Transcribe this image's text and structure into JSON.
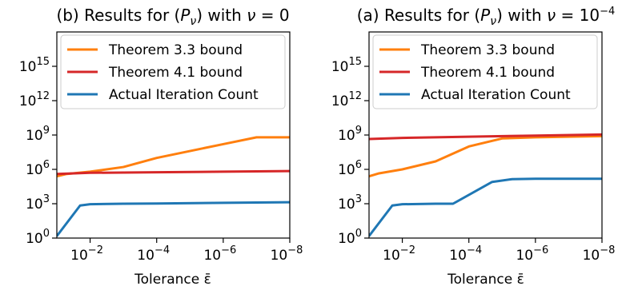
{
  "chart_data": [
    {
      "type": "line",
      "title": "(b) Results for (P_ν) with ν = 0",
      "title_parts": {
        "prefix": "(b) Results for (",
        "P": "P",
        "nu": "ν",
        "mid": ") with ",
        "nu2": "ν",
        "suffix": " = 0"
      },
      "xlabel": "Tolerance ε̄",
      "xscale": "log-reversed",
      "yscale": "log",
      "xlim": [
        0.1,
        1e-08
      ],
      "ylim": [
        1,
        1e+18
      ],
      "x_ticks": [
        {
          "value": 0.01,
          "base": "10",
          "exp": "−2"
        },
        {
          "value": 0.0001,
          "base": "10",
          "exp": "−4"
        },
        {
          "value": 1e-06,
          "base": "10",
          "exp": "−6"
        },
        {
          "value": 1e-08,
          "base": "10",
          "exp": "−8"
        }
      ],
      "y_ticks": [
        {
          "value": 1,
          "base": "10",
          "exp": "0"
        },
        {
          "value": 1000,
          "base": "10",
          "exp": "3"
        },
        {
          "value": 1000000.0,
          "base": "10",
          "exp": "6"
        },
        {
          "value": 1000000000.0,
          "base": "10",
          "exp": "9"
        },
        {
          "value": 1000000000000.0,
          "base": "10",
          "exp": "12"
        },
        {
          "value": 1000000000000000.0,
          "base": "10",
          "exp": "15"
        }
      ],
      "grid": false,
      "legend_position": "top",
      "series": [
        {
          "name": "Theorem 3.3 bound",
          "color": "#ff7f0e",
          "points": [
            [
              0.1,
              250000.0
            ],
            [
              0.05,
              400000.0
            ],
            [
              0.01,
              630000.0
            ],
            [
              0.001,
              1600000.0
            ],
            [
              0.0001,
              10000000.0
            ],
            [
              1e-05,
              40000000.0
            ],
            [
              1e-06,
              160000000.0
            ],
            [
              1e-07,
              630000000.0
            ],
            [
              1e-08,
              630000000.0
            ]
          ]
        },
        {
          "name": "Theorem 4.1 bound",
          "color": "#d62728",
          "points": [
            [
              0.1,
              400000.0
            ],
            [
              0.03,
              450000.0
            ],
            [
              0.01,
              500000.0
            ],
            [
              0.0001,
              560000.0
            ],
            [
              1e-06,
              630000.0
            ],
            [
              1e-08,
              710000.0
            ]
          ]
        },
        {
          "name": "Actual Iteration Count",
          "color": "#1f77b4",
          "points": [
            [
              0.1,
              1.5
            ],
            [
              0.02,
              700
            ],
            [
              0.01,
              900
            ],
            [
              0.001,
              1000
            ],
            [
              0.0001,
              1050
            ],
            [
              1e-06,
              1200
            ],
            [
              1e-08,
              1350
            ]
          ]
        }
      ]
    },
    {
      "type": "line",
      "title": "(a) Results for (P_ν) with ν = 10⁻⁴",
      "title_parts": {
        "prefix": "(a) Results for (",
        "P": "P",
        "nu": "ν",
        "mid": ") with ",
        "nu2": "ν",
        "suffix": " = 10",
        "sup": "−4"
      },
      "xlabel": "Tolerance ε̄",
      "xscale": "log-reversed",
      "yscale": "log",
      "xlim": [
        0.1,
        1e-08
      ],
      "ylim": [
        1,
        1e+18
      ],
      "x_ticks": [
        {
          "value": 0.01,
          "base": "10",
          "exp": "−2"
        },
        {
          "value": 0.0001,
          "base": "10",
          "exp": "−4"
        },
        {
          "value": 1e-06,
          "base": "10",
          "exp": "−6"
        },
        {
          "value": 1e-08,
          "base": "10",
          "exp": "−8"
        }
      ],
      "y_ticks": [
        {
          "value": 1,
          "base": "10",
          "exp": "0"
        },
        {
          "value": 1000,
          "base": "10",
          "exp": "3"
        },
        {
          "value": 1000000.0,
          "base": "10",
          "exp": "6"
        },
        {
          "value": 1000000000.0,
          "base": "10",
          "exp": "9"
        },
        {
          "value": 1000000000000.0,
          "base": "10",
          "exp": "12"
        },
        {
          "value": 1000000000000000.0,
          "base": "10",
          "exp": "15"
        }
      ],
      "grid": false,
      "legend_position": "top",
      "series": [
        {
          "name": "Theorem 3.3 bound",
          "color": "#ff7f0e",
          "points": [
            [
              0.1,
              250000.0
            ],
            [
              0.05,
              450000.0
            ],
            [
              0.01,
              1000000.0
            ],
            [
              0.001,
              5000000.0
            ],
            [
              0.0001,
              100000000.0
            ],
            [
              1e-05,
              500000000.0
            ],
            [
              1e-06,
              630000000.0
            ],
            [
              1e-08,
              800000000.0
            ]
          ]
        },
        {
          "name": "Theorem 4.1 bound",
          "color": "#d62728",
          "points": [
            [
              0.1,
              450000000.0
            ],
            [
              0.01,
              560000000.0
            ],
            [
              0.0001,
              710000000.0
            ],
            [
              1e-06,
              890000000.0
            ],
            [
              1e-08,
              1100000000.0
            ]
          ]
        },
        {
          "name": "Actual Iteration Count",
          "color": "#1f77b4",
          "points": [
            [
              0.1,
              1.5
            ],
            [
              0.02,
              700
            ],
            [
              0.01,
              900
            ],
            [
              0.001,
              1000
            ],
            [
              0.0003,
              1000
            ],
            [
              2e-05,
              80000
            ],
            [
              5e-06,
              140000
            ],
            [
              1e-06,
              150000
            ],
            [
              1e-08,
              150000
            ]
          ]
        }
      ]
    }
  ]
}
